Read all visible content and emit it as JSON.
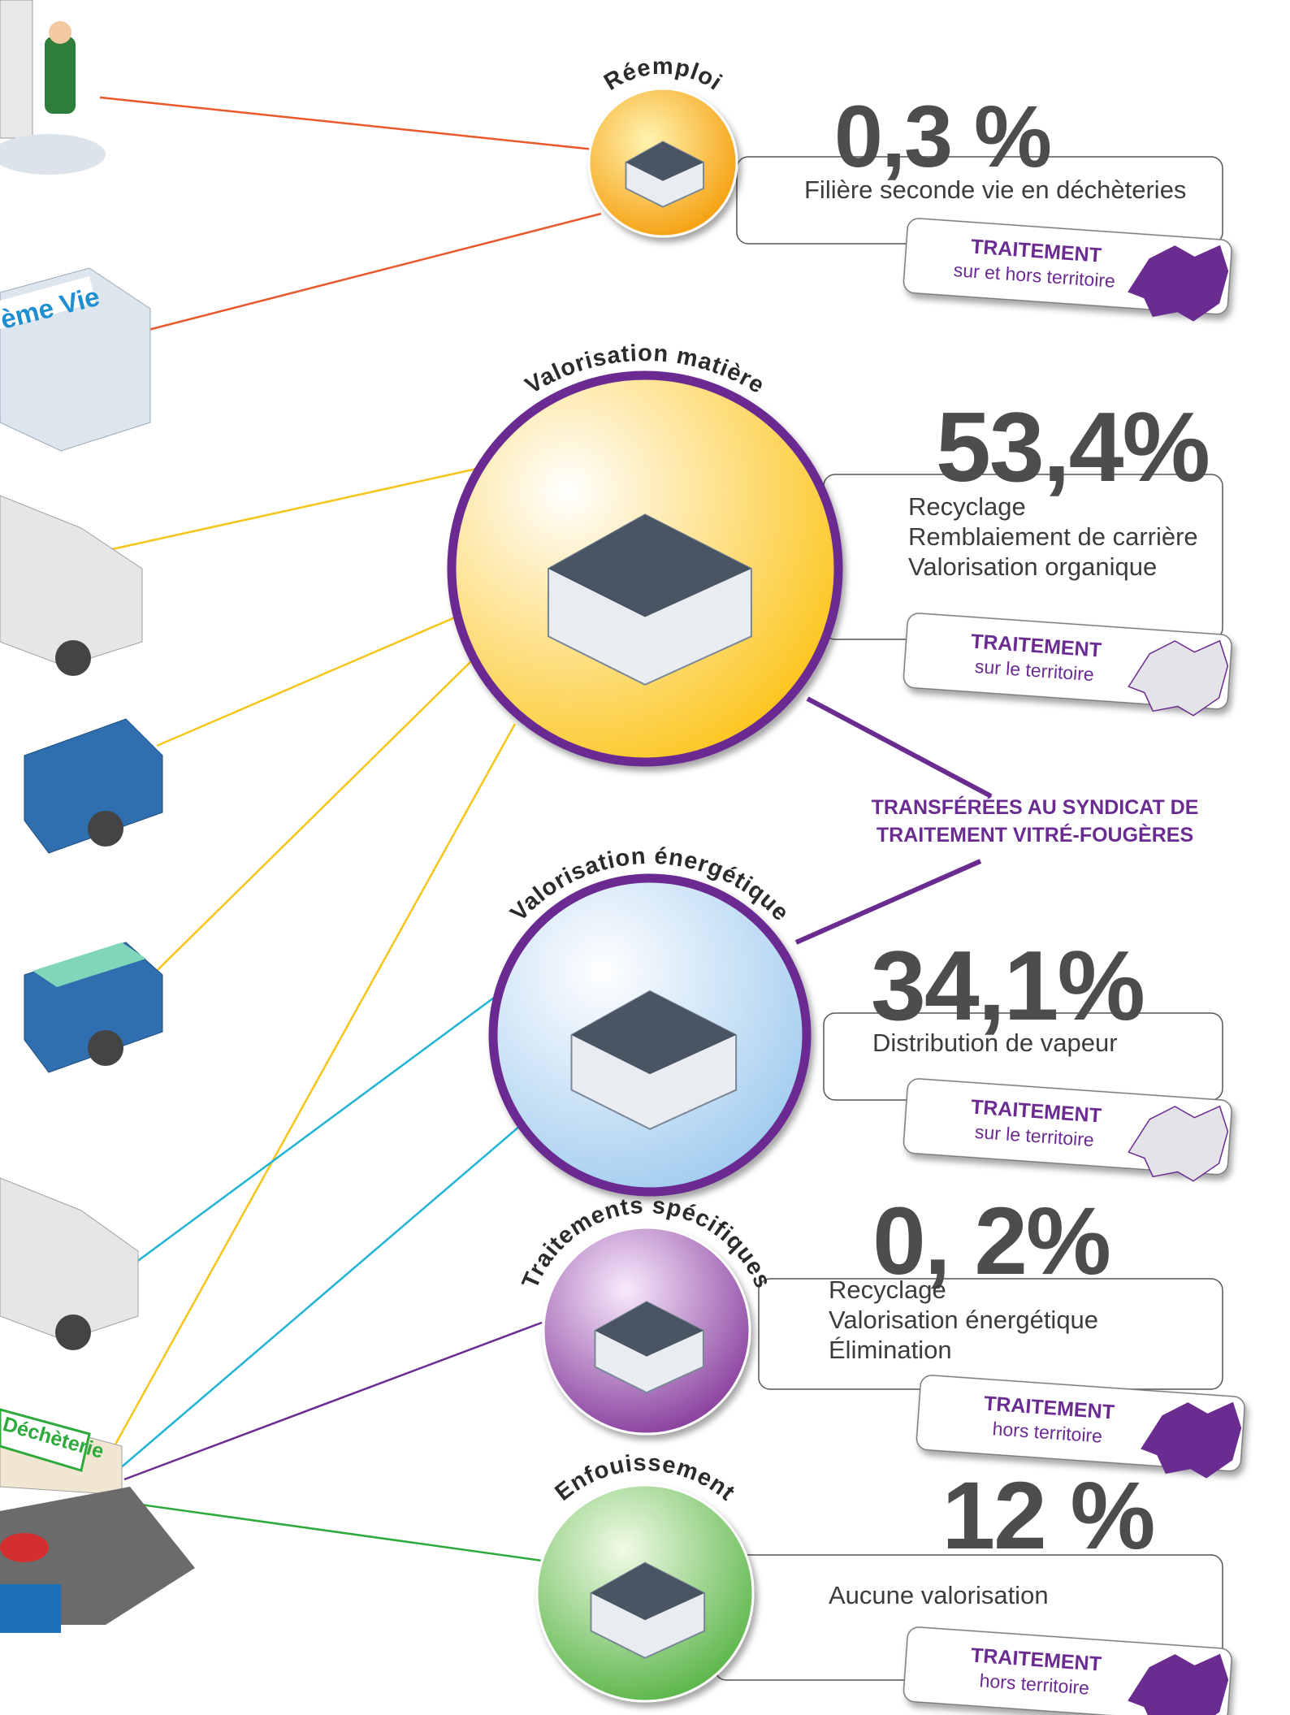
{
  "sections": [
    {
      "label": "Réemploi",
      "percent": "0,3 %",
      "descriptions": [
        "Filière seconde vie en déchèteries"
      ],
      "treatment": {
        "title": "TRAITEMENT",
        "scope": "sur et hors territoire"
      }
    },
    {
      "label": "Valorisation matière",
      "percent": "53,4%",
      "descriptions": [
        "Recyclage",
        "Remblaiement de carrière",
        "Valorisation organique"
      ],
      "treatment": {
        "title": "TRAITEMENT",
        "scope": "sur le territoire"
      }
    },
    {
      "label": "Valorisation énergétique",
      "percent": "34,1%",
      "descriptions": [
        "Distribution de vapeur"
      ],
      "treatment": {
        "title": "TRAITEMENT",
        "scope": "sur le territoire"
      }
    },
    {
      "label": "Traitements spécifiques",
      "percent": "0, 2%",
      "descriptions": [
        "Recyclage",
        "Valorisation énergétique",
        "Élimination"
      ],
      "treatment": {
        "title": "TRAITEMENT",
        "scope": "hors territoire"
      }
    },
    {
      "label": "Enfouissement",
      "percent": "12 %",
      "descriptions": [
        "Aucune valorisation"
      ],
      "treatment": {
        "title": "TRAITEMENT",
        "scope": "hors territoire"
      }
    }
  ],
  "transfer_note": [
    "TRANSFÉRÉES AU SYNDICAT DE",
    "TRAITEMENT VITRÉ-FOUGÈRES"
  ],
  "illustrations": {
    "shop_sign": "ème Vie",
    "center_sign": "Déchèterie"
  }
}
